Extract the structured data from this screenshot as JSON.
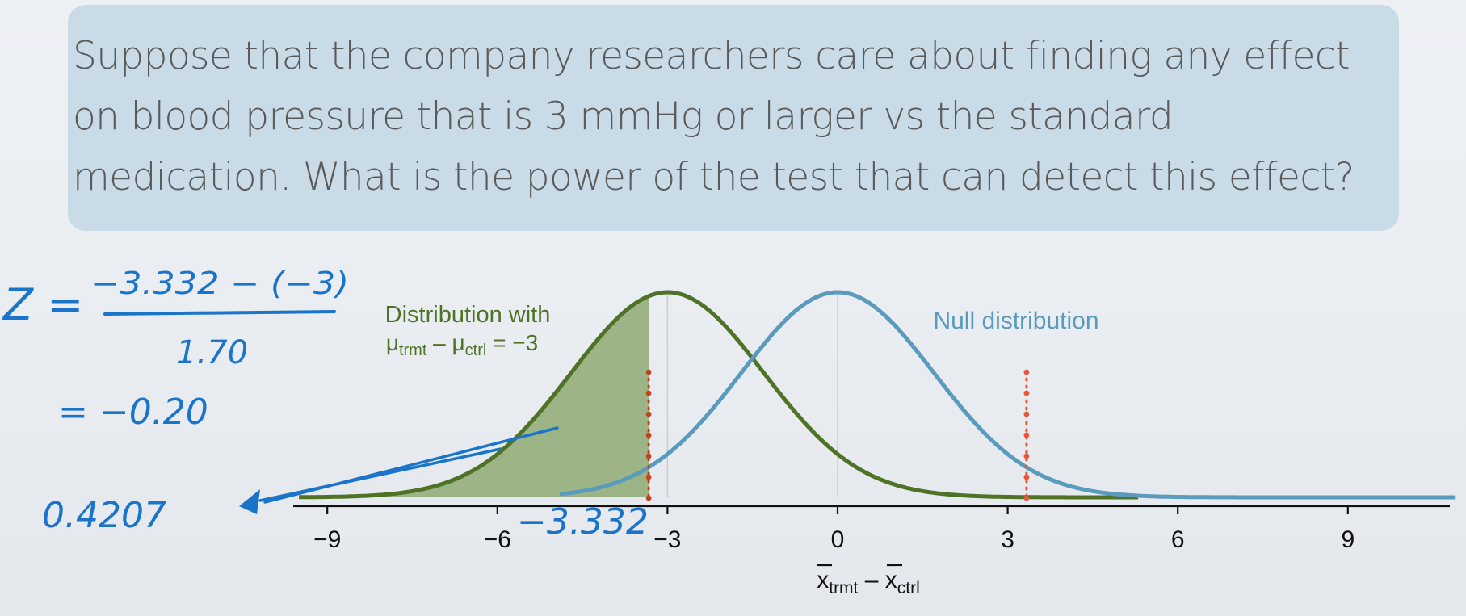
{
  "question": {
    "text": "Suppose that the company researchers care about finding any effect on blood pressure that is 3 mmHg or larger vs the standard medication. What is the power of the test that can detect this effect?"
  },
  "chart_data": {
    "type": "area",
    "x_axis": {
      "ticks": [
        -9,
        -6,
        -3,
        0,
        3,
        6,
        9
      ],
      "tick_labels": [
        "−9",
        "−6",
        "−3",
        "0",
        "3",
        "6",
        "9"
      ],
      "label_main1": "x",
      "label_sub1": "trmt",
      "label_minus": " – ",
      "label_main2": "x",
      "label_sub2": "ctrl",
      "range": [
        -9.5,
        10.9
      ]
    },
    "y_axis": {
      "visible": false
    },
    "series": [
      {
        "name": "Distribution with μtrmt – μctrl = −3",
        "mean": -3,
        "sd": 1.7,
        "color": "#4e7326",
        "shaded_region": {
          "to": -3.332,
          "fill": "#9db486"
        }
      },
      {
        "name": "Null distribution",
        "mean": 0,
        "sd": 1.7,
        "color": "#5a9bbd"
      }
    ],
    "labels": {
      "alt_line1": "Distribution with",
      "alt_mu1": "μ",
      "alt_sub1": "trmt",
      "alt_minus": " – ",
      "alt_mu2": "μ",
      "alt_sub2": "ctrl",
      "alt_eq": " = −3",
      "null_label": "Null distribution"
    },
    "cutoffs": [
      {
        "x": -3.332,
        "color": "#c0451f",
        "style": "dotted"
      },
      {
        "x": 3.332,
        "color": "#e8563a",
        "style": "dotted"
      }
    ],
    "vertical_guides": [
      -3,
      0
    ],
    "colors": {
      "alt": "#4e7326",
      "alt_fill": "#9db486",
      "null": "#5a9bbd",
      "ink": "#1a74c9",
      "axis": "#111111"
    }
  },
  "annotations": {
    "z_lhs": "Z =",
    "numerator": "−3.332 − (−3)",
    "denominator": "1.70",
    "result": "= −0.20",
    "power": "0.4207",
    "cutoff_value": "−3.332"
  }
}
